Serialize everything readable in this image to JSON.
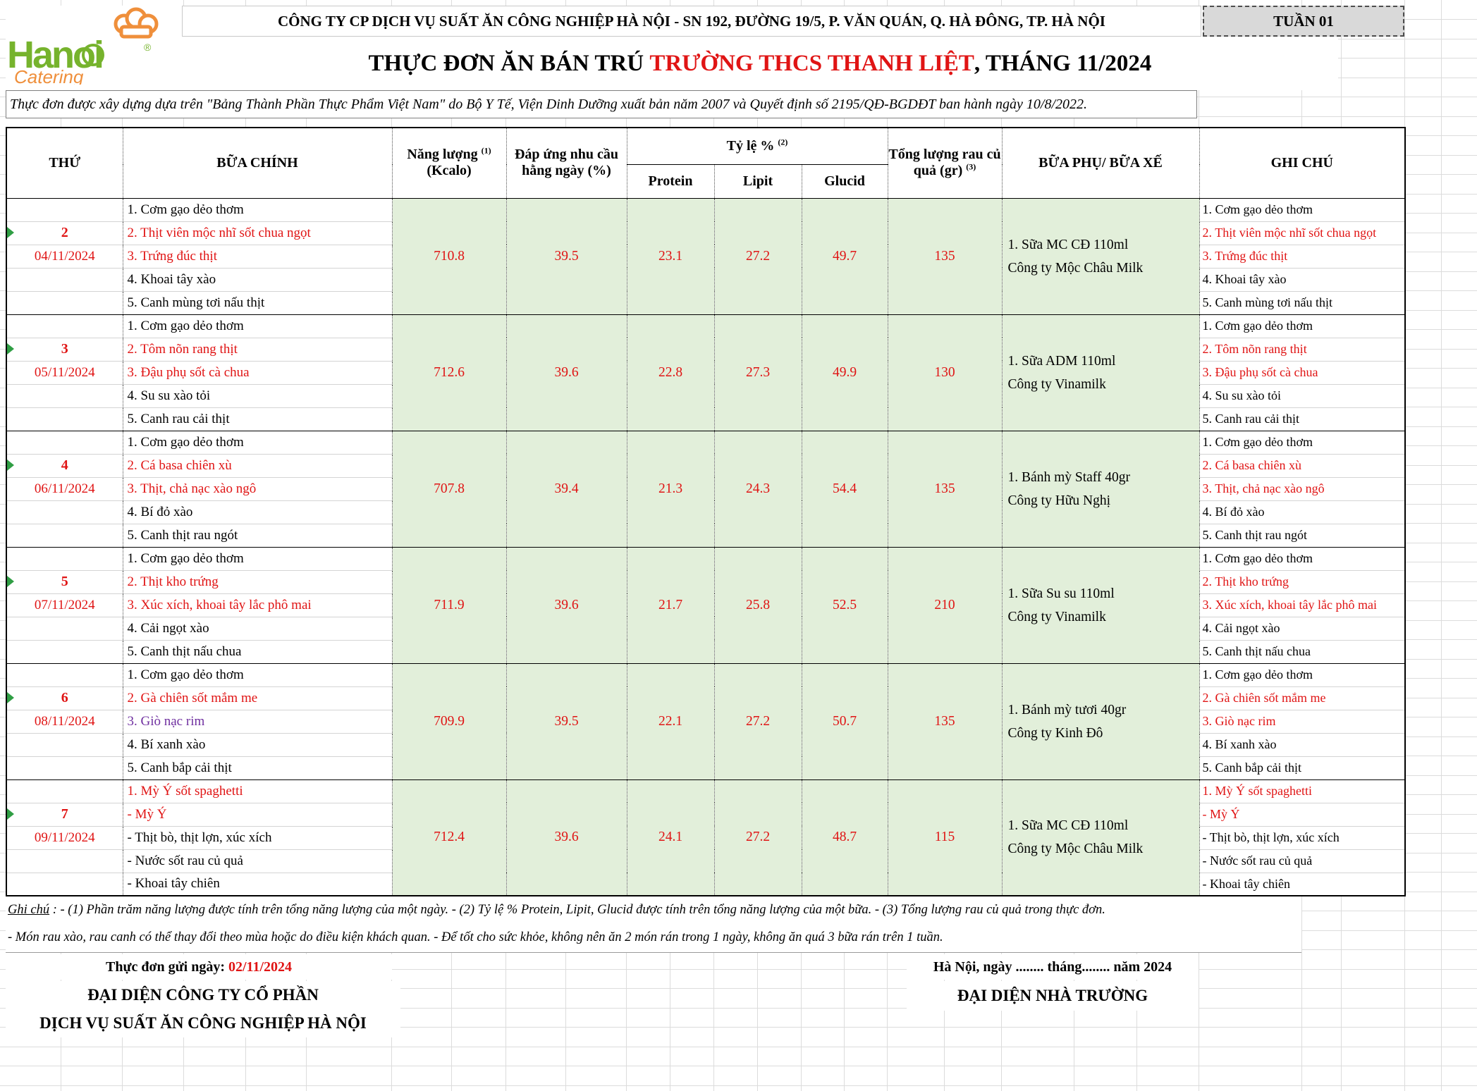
{
  "header": {
    "company_line": "CÔNG TY CP DỊCH VỤ SUẤT ĂN CÔNG NGHIỆP HÀ NỘI - SN 192, ĐƯỜNG 19/5, P. VĂN QUÁN, Q. HÀ ĐÔNG, TP. HÀ NỘI",
    "week_badge": "TUẦN 01",
    "title_prefix": "THỰC ĐƠN ĂN BÁN TRÚ ",
    "title_highlight": "TRƯỜNG THCS THANH LIỆT",
    "title_suffix": ", THÁNG 11/2024",
    "subtitle": "Thực đơn được xây dựng dựa trên \"Bảng Thành Phần Thực Phẩm Việt Nam\" do Bộ Y Tế, Viện Dinh Dưỡng xuất bản năm 2007 và Quyết định số 2195/QĐ-BGDĐT ban hành ngày 10/8/2022.",
    "logo": {
      "brand_top": "Hanoi",
      "brand_bottom": "Catering",
      "registered_mark": "®",
      "icon": "chef-hat-icon"
    }
  },
  "colors": {
    "accent_red": "#e01414",
    "purple_item": "#7030a0",
    "green_cell": "#e2efda",
    "badge_gray": "#d9d9d9",
    "flag_green": "#2f9e44"
  },
  "table": {
    "headers": {
      "day": "THỨ",
      "main_meal": "BỮA CHÍNH",
      "energy_l1": "Năng lượng",
      "energy_sup": "(1)",
      "energy_l2": "(Kcalo)",
      "demand": "Đáp ứng nhu cầu hằng ngày (%)",
      "ratio": "Tỷ lệ %",
      "ratio_sup": "(2)",
      "protein": "Protein",
      "lipit": "Lipit",
      "glucid": "Glucid",
      "veg_label": "Tổng lượng rau củ quả (gr)",
      "veg_sup": "(3)",
      "side_meal": "BỮA PHỤ/ BỮA XẾ",
      "notes": "GHI CHÚ"
    },
    "days": [
      {
        "day": "2",
        "date": "04/11/2024",
        "main": [
          {
            "t": "1. Cơm gạo dẻo thơm",
            "c": "k"
          },
          {
            "t": "2. Thịt viên mộc nhĩ sốt chua ngọt",
            "c": "r"
          },
          {
            "t": "3. Trứng đúc thịt",
            "c": "r"
          },
          {
            "t": "4. Khoai tây xào",
            "c": "k"
          },
          {
            "t": "5. Canh mùng tơi nấu thịt",
            "c": "k"
          }
        ],
        "energy": "710.8",
        "demand": "39.5",
        "protein": "23.1",
        "lipit": "27.2",
        "glucid": "49.7",
        "veg": "135",
        "side": [
          "1. Sữa MC CĐ 110ml",
          "Công ty Mộc Châu Milk"
        ]
      },
      {
        "day": "3",
        "date": "05/11/2024",
        "main": [
          {
            "t": "1. Cơm gạo dẻo thơm",
            "c": "k"
          },
          {
            "t": "2. Tôm nõn rang thịt",
            "c": "r"
          },
          {
            "t": "3. Đậu phụ sốt cà chua",
            "c": "r"
          },
          {
            "t": "4. Su su xào tỏi",
            "c": "k"
          },
          {
            "t": "5. Canh rau cải thịt",
            "c": "k"
          }
        ],
        "energy": "712.6",
        "demand": "39.6",
        "protein": "22.8",
        "lipit": "27.3",
        "glucid": "49.9",
        "veg": "130",
        "side": [
          "1. Sữa ADM 110ml",
          "Công ty Vinamilk"
        ]
      },
      {
        "day": "4",
        "date": "06/11/2024",
        "main": [
          {
            "t": "1. Cơm gạo dẻo thơm",
            "c": "k"
          },
          {
            "t": "2. Cá basa chiên xù",
            "c": "r"
          },
          {
            "t": "3. Thịt, chả nạc xào ngô",
            "c": "r"
          },
          {
            "t": "4. Bí đỏ xào",
            "c": "k"
          },
          {
            "t": "5. Canh thịt rau ngót",
            "c": "k"
          }
        ],
        "energy": "707.8",
        "demand": "39.4",
        "protein": "21.3",
        "lipit": "24.3",
        "glucid": "54.4",
        "veg": "135",
        "side": [
          "1. Bánh mỳ Staff 40gr",
          "Công ty Hữu Nghị"
        ]
      },
      {
        "day": "5",
        "date": "07/11/2024",
        "main": [
          {
            "t": "1. Cơm gạo dẻo thơm",
            "c": "k"
          },
          {
            "t": "2. Thịt kho trứng",
            "c": "r"
          },
          {
            "t": "3. Xúc xích, khoai tây lắc phô mai",
            "c": "r"
          },
          {
            "t": "4. Cải ngọt xào",
            "c": "k"
          },
          {
            "t": "5. Canh thịt nấu chua",
            "c": "k"
          }
        ],
        "energy": "711.9",
        "demand": "39.6",
        "protein": "21.7",
        "lipit": "25.8",
        "glucid": "52.5",
        "veg": "210",
        "side": [
          "1. Sữa Su su 110ml",
          "Công ty Vinamilk"
        ]
      },
      {
        "day": "6",
        "date": "08/11/2024",
        "main": [
          {
            "t": "1. Cơm gạo dẻo thơm",
            "c": "k"
          },
          {
            "t": "2. Gà chiên sốt mắm me",
            "c": "r"
          },
          {
            "t": "3. Giò nạc rim",
            "c": "p"
          },
          {
            "t": "4. Bí xanh xào",
            "c": "k"
          },
          {
            "t": "5. Canh bắp cải thịt",
            "c": "k"
          }
        ],
        "note": [
          {
            "t": "1. Cơm gạo dẻo thơm",
            "c": "k"
          },
          {
            "t": "2. Gà chiên sốt mắm me",
            "c": "r"
          },
          {
            "t": "3. Giò nạc rim",
            "c": "r"
          },
          {
            "t": "4. Bí xanh xào",
            "c": "k"
          },
          {
            "t": "5. Canh bắp cải thịt",
            "c": "k"
          }
        ],
        "energy": "709.9",
        "demand": "39.5",
        "protein": "22.1",
        "lipit": "27.2",
        "glucid": "50.7",
        "veg": "135",
        "side": [
          "1. Bánh mỳ tươi 40gr",
          "Công ty Kinh Đô"
        ]
      },
      {
        "day": "7",
        "date": "09/11/2024",
        "main": [
          {
            "t": "1. Mỳ Ý sốt spaghetti",
            "c": "r"
          },
          {
            "t": "- Mỳ Ý",
            "c": "r"
          },
          {
            "t": "- Thịt bò, thịt lợn, xúc xích",
            "c": "k"
          },
          {
            "t": "- Nước sốt rau củ quả",
            "c": "k"
          },
          {
            "t": "- Khoai tây chiên",
            "c": "k"
          }
        ],
        "energy": "712.4",
        "demand": "39.6",
        "protein": "24.1",
        "lipit": "27.2",
        "glucid": "48.7",
        "veg": "115",
        "side": [
          "1. Sữa MC CĐ 110ml",
          "Công ty Mộc Châu Milk"
        ]
      }
    ]
  },
  "footnotes": {
    "label": "Ghi chú",
    "line1": " : - (1) Phần trăm năng lượng được tính trên tổng năng lượng của một ngày. - (2) Tỷ lệ % Protein, Lipit, Glucid được tính trên tổng năng lượng của một bữa. - (3) Tổng lượng rau củ quả trong thực đơn.",
    "line2": "- Món rau xào, rau canh có thể thay đổi theo mùa hoặc do điều kiện khách quan. - Để tốt cho sức khỏe, không nên ăn 2 món rán trong 1 ngày, không ăn quá 3 bữa rán trên 1 tuần."
  },
  "signatures": {
    "sent_label": "Thực đơn gửi ngày: ",
    "sent_date": "02/11/2024",
    "left_line1": "ĐẠI DIỆN CÔNG TY CỔ PHẦN",
    "left_line2": "DỊCH VỤ SUẤT ĂN CÔNG NGHIỆP HÀ NỘI",
    "right_date_line": "Hà Nội, ngày ........ tháng........ năm 2024",
    "right_line1": "ĐẠI DIỆN NHÀ TRƯỜNG"
  }
}
